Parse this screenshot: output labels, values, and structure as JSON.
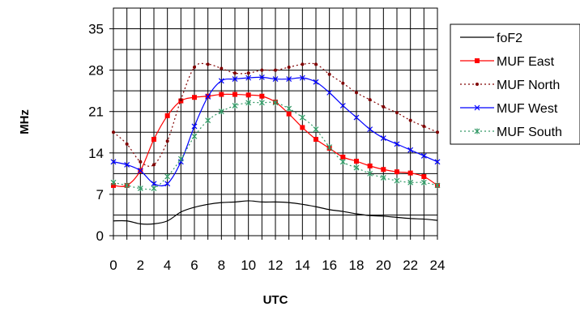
{
  "chart_data": {
    "type": "line",
    "title": "",
    "xlabel": "UTC",
    "ylabel": "MHz",
    "xlim": [
      0,
      24
    ],
    "ylim": [
      0,
      38.5
    ],
    "grid": true,
    "legend_position": "right",
    "x": [
      0,
      1,
      2,
      3,
      4,
      5,
      6,
      7,
      8,
      9,
      10,
      11,
      12,
      13,
      14,
      15,
      16,
      17,
      18,
      19,
      20,
      21,
      22,
      23,
      24
    ],
    "x_ticks": [
      "0",
      "2",
      "4",
      "6",
      "8",
      "10",
      "12",
      "14",
      "16",
      "18",
      "20",
      "22",
      "24"
    ],
    "x_tick_values": [
      0,
      2,
      4,
      6,
      8,
      10,
      12,
      14,
      16,
      18,
      20,
      22,
      24
    ],
    "y_ticks": [
      "0",
      "7",
      "14",
      "21",
      "28",
      "35"
    ],
    "y_tick_values": [
      0,
      7,
      14,
      21,
      28,
      35
    ],
    "series": [
      {
        "name": "foF2",
        "color": "#000000",
        "line": "solid",
        "marker": "none",
        "values": [
          2.5,
          2.5,
          2.0,
          2.0,
          2.5,
          4.0,
          4.8,
          5.3,
          5.6,
          5.7,
          5.9,
          5.7,
          5.7,
          5.6,
          5.3,
          4.9,
          4.4,
          4.1,
          3.7,
          3.4,
          3.3,
          3.1,
          2.9,
          2.8,
          2.6
        ]
      },
      {
        "name": "MUF East",
        "color": "#ff0000",
        "line": "solid",
        "marker": "square",
        "values": [
          8.5,
          8.5,
          11.0,
          16.3,
          20.3,
          22.8,
          23.4,
          23.6,
          23.9,
          23.9,
          23.8,
          23.6,
          22.6,
          20.6,
          18.3,
          16.3,
          14.8,
          13.3,
          12.6,
          11.8,
          11.2,
          10.8,
          10.6,
          10.0,
          8.5
        ]
      },
      {
        "name": "MUF North",
        "color": "#800000",
        "line": "dotted",
        "marker": "dot",
        "values": [
          17.5,
          15.5,
          12.5,
          12.0,
          16.0,
          23.0,
          28.5,
          29.0,
          28.3,
          27.5,
          27.5,
          28.0,
          28.0,
          28.5,
          29.0,
          29.0,
          27.3,
          25.8,
          24.2,
          23.0,
          21.8,
          20.8,
          19.5,
          18.5,
          17.5
        ]
      },
      {
        "name": "MUF West",
        "color": "#0000ff",
        "line": "solid",
        "marker": "x",
        "values": [
          12.5,
          12.0,
          11.0,
          8.8,
          8.8,
          12.5,
          18.5,
          23.5,
          26.2,
          26.5,
          26.7,
          26.8,
          26.5,
          26.5,
          26.7,
          26.0,
          24.2,
          22.0,
          20.0,
          18.0,
          16.5,
          15.5,
          14.5,
          13.5,
          12.5
        ]
      },
      {
        "name": "MUF South",
        "color": "#339966",
        "line": "dotted",
        "marker": "asterisk",
        "values": [
          9.0,
          8.5,
          8.0,
          8.0,
          10.0,
          13.0,
          16.8,
          19.5,
          21.0,
          22.0,
          22.5,
          22.5,
          22.5,
          21.5,
          20.0,
          18.0,
          15.0,
          12.5,
          11.5,
          10.5,
          9.8,
          9.3,
          9.0,
          9.0,
          8.5
        ]
      }
    ]
  }
}
